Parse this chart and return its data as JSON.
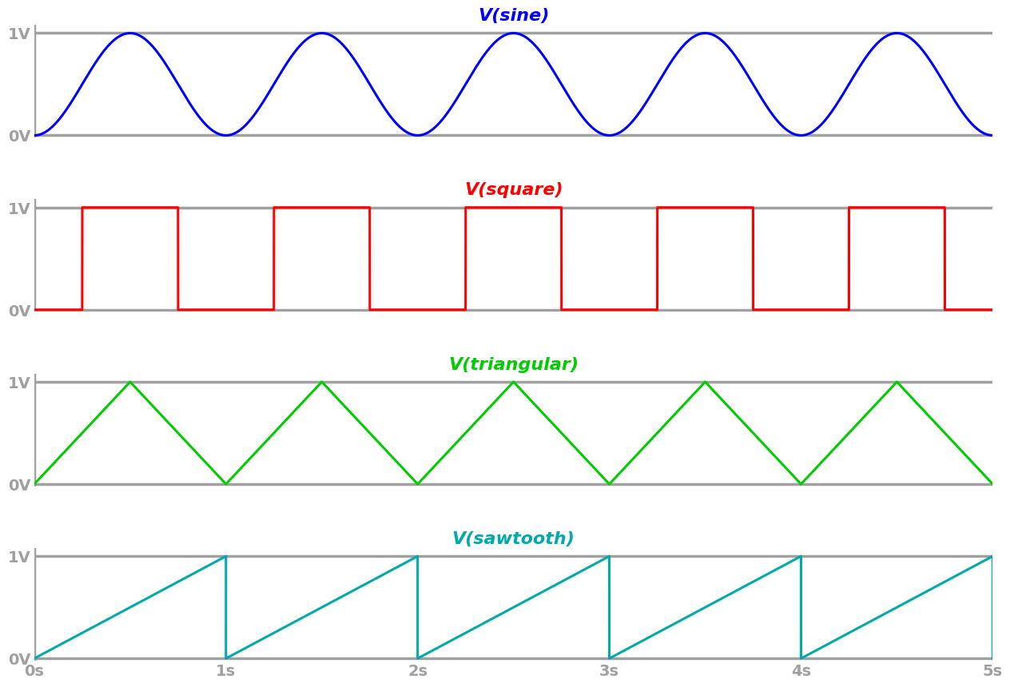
{
  "title_sine": "V(sine)",
  "title_square": "V(square)",
  "title_triangular": "V(triangular)",
  "title_sawtooth": "V(sawtooth)",
  "color_sine": "#0000FF",
  "color_square": "#FF0000",
  "color_triangular": "#00CC00",
  "color_sawtooth": "#00AAAA",
  "color_grid": "#A0A0A0",
  "color_bg": "#FFFFFF",
  "color_tick_label": "#A0A0A0",
  "xlim": [
    0,
    5
  ],
  "ylim": [
    0,
    1
  ],
  "period": 1.0,
  "x_ticks": [
    0,
    1,
    2,
    3,
    4,
    5
  ],
  "x_tick_labels": [
    "0s",
    "1s",
    "2s",
    "3s",
    "4s",
    "5s"
  ],
  "y_ticks": [
    0,
    1
  ],
  "y_tick_labels": [
    "0V",
    "1V"
  ],
  "linewidth": 2.2,
  "grid_linewidth": 2.5,
  "title_fontsize": 16,
  "tick_fontsize": 14
}
